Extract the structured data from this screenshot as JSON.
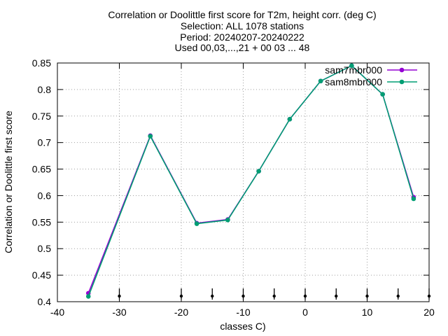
{
  "chart_data": {
    "type": "line",
    "title_lines": [
      "Correlation or Doolittle first score  for T2m, height corr. (deg C)",
      "Selection: ALL   1078 stations",
      "Period: 20240207-20240222",
      "Used 00,03,...,21 + 00 03 ... 48"
    ],
    "xlabel": "classes C)",
    "ylabel": "Correlation or Doolittle first score",
    "xlim": [
      -40,
      20
    ],
    "ylim": [
      0.4,
      0.85
    ],
    "xticks": [
      -40,
      -30,
      -20,
      -10,
      0,
      10,
      20
    ],
    "xtick_labels": [
      "-40",
      "-30",
      "-20",
      "-10",
      "0",
      "10",
      "20"
    ],
    "yticks": [
      0.4,
      0.45,
      0.5,
      0.55,
      0.6,
      0.65,
      0.7,
      0.75,
      0.8,
      0.85
    ],
    "ytick_labels": [
      "0.4",
      "0.45",
      "0.5",
      "0.55",
      "0.6",
      "0.65",
      "0.7",
      "0.75",
      "0.8",
      "0.85"
    ],
    "grid": true,
    "legend_position": "top-right",
    "series": [
      {
        "name": "sam7mbr000",
        "color": "#9400d3",
        "x": [
          -35,
          -25,
          -17.5,
          -12.5,
          -7.5,
          -2.5,
          2.5,
          7.5,
          12.5,
          17.5
        ],
        "y": [
          0.416,
          0.713,
          0.548,
          0.555,
          0.646,
          0.744,
          0.816,
          0.845,
          0.791,
          0.597
        ]
      },
      {
        "name": "sam8mbr000",
        "color": "#009e73",
        "x": [
          -35,
          -25,
          -17.5,
          -12.5,
          -7.5,
          -2.5,
          2.5,
          7.5,
          12.5,
          17.5
        ],
        "y": [
          0.41,
          0.712,
          0.547,
          0.554,
          0.646,
          0.744,
          0.816,
          0.845,
          0.791,
          0.594
        ]
      }
    ],
    "class_markers": {
      "color": "#000000",
      "x": [
        -30,
        -20,
        -15,
        -10,
        -5,
        0,
        5,
        10,
        15,
        20
      ]
    }
  }
}
